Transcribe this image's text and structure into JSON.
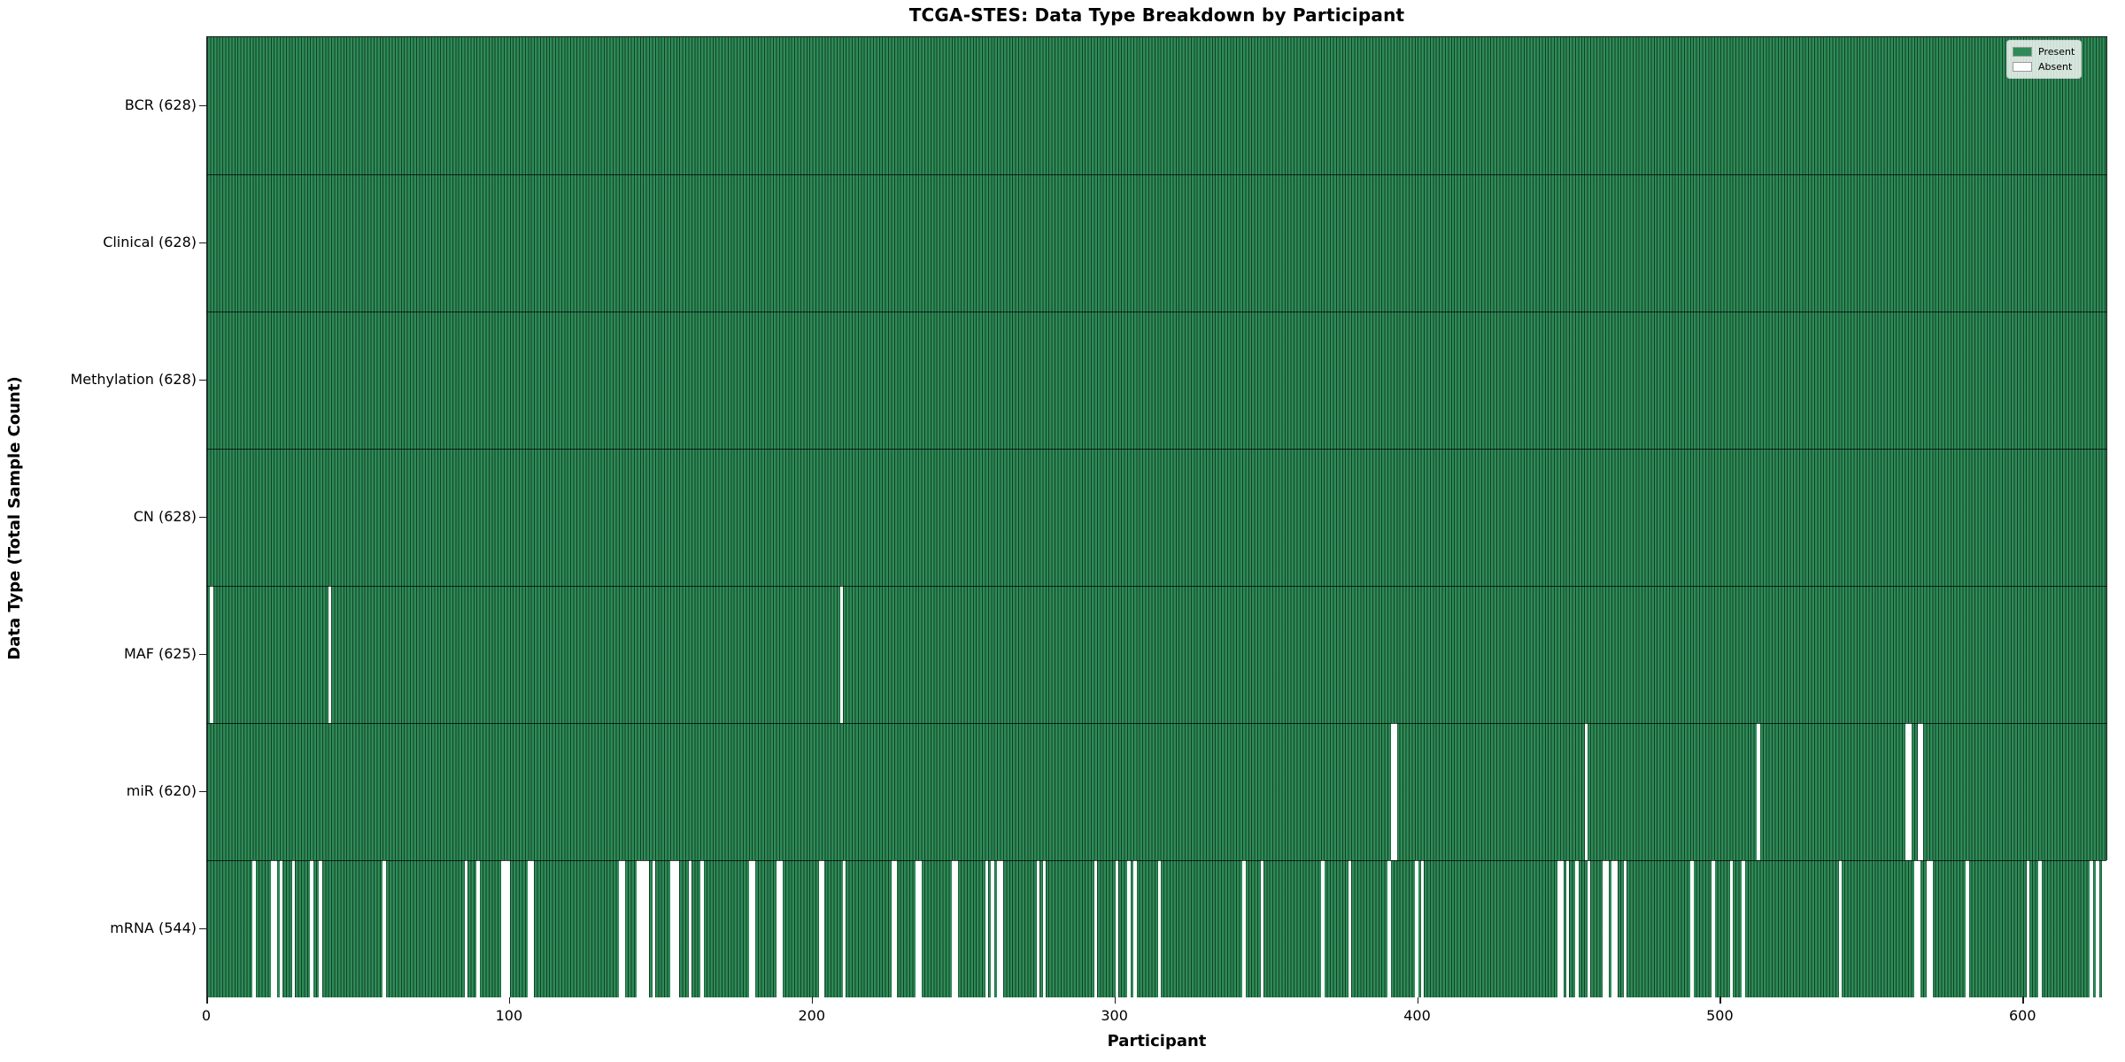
{
  "chart_data": {
    "type": "heatmap",
    "title": "TCGA-STES: Data Type Breakdown by Participant",
    "xlabel": "Participant",
    "ylabel": "Data Type (Total Sample Count)",
    "n_participants": 628,
    "x_ticks": [
      0,
      100,
      200,
      300,
      400,
      500,
      600
    ],
    "legend_position": "upper right",
    "grid": false,
    "colors": {
      "present": "#2e8b57",
      "absent": "#ffffff",
      "bar_edge": "#0a2616",
      "axes_edge": "#1a1a1a"
    },
    "legend": [
      {
        "label": "Present",
        "color": "#2e8b57"
      },
      {
        "label": "Absent",
        "color": "#ffffff"
      }
    ],
    "rows": [
      {
        "name": "BCR",
        "label": "BCR (628)",
        "present_count": 628,
        "absent_participants": []
      },
      {
        "name": "Clinical",
        "label": "Clinical (628)",
        "present_count": 628,
        "absent_participants": []
      },
      {
        "name": "Methylation",
        "label": "Methylation (628)",
        "present_count": 628,
        "absent_participants": []
      },
      {
        "name": "CN",
        "label": "CN (628)",
        "present_count": 628,
        "absent_participants": []
      },
      {
        "name": "MAF",
        "label": "MAF (625)",
        "present_count": 625,
        "absent_participants": [
          1,
          40,
          209
        ]
      },
      {
        "name": "miR",
        "label": "miR (620)",
        "present_count": 620,
        "absent_participants": [
          391,
          392,
          455,
          512,
          561,
          562,
          565,
          566
        ]
      },
      {
        "name": "mRNA",
        "label": "mRNA (544)",
        "present_count": 544,
        "absent_participants": [
          15,
          21,
          22,
          24,
          28,
          34,
          37,
          58,
          85,
          89,
          97,
          98,
          99,
          106,
          107,
          136,
          137,
          142,
          143,
          144,
          145,
          147,
          153,
          154,
          155,
          159,
          163,
          179,
          180,
          188,
          189,
          202,
          203,
          210,
          226,
          227,
          234,
          235,
          246,
          247,
          257,
          259,
          261,
          262,
          274,
          276,
          293,
          300,
          304,
          306,
          314,
          342,
          348,
          368,
          377,
          390,
          399,
          401,
          446,
          447,
          449,
          452,
          456,
          461,
          462,
          464,
          465,
          468,
          490,
          497,
          503,
          507,
          539,
          564,
          565,
          568,
          569,
          581,
          601,
          605,
          622,
          624,
          626,
          627
        ]
      }
    ]
  }
}
